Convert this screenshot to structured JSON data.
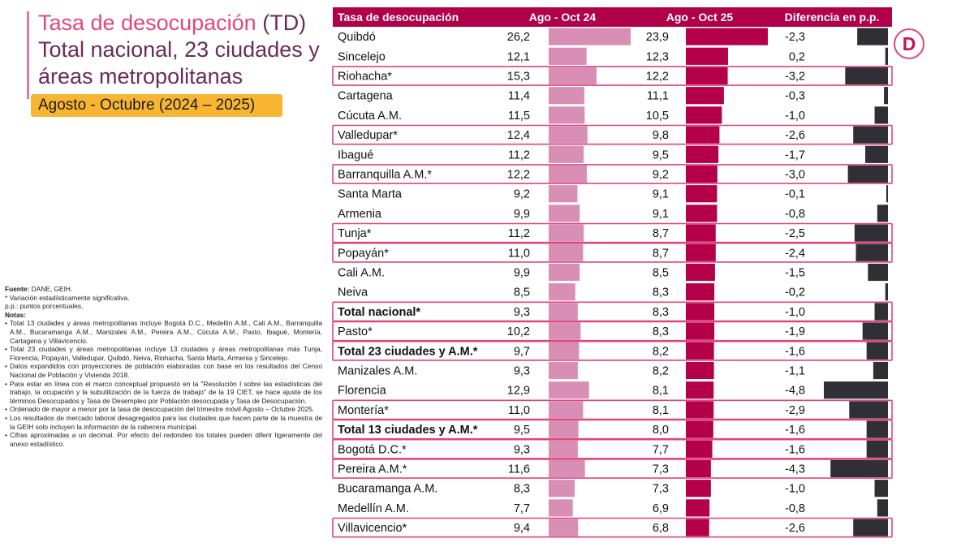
{
  "header": {
    "title_line1_pink": "Tasa de desocupación",
    "title_line1_rest": " (TD)",
    "title_line2": "Total nacional, 23 ciudades y",
    "title_line3": "áreas metropolitanas",
    "period": "Agosto - Octubre (2024 – 2025)"
  },
  "logo": {
    "letter": "D"
  },
  "colors": {
    "header_bg": "#b0004a",
    "bar_2024": "#d98fb5",
    "bar_2025": "#b30048",
    "bar_diff": "#2f2f35",
    "highlight_border": "#e0457c",
    "title_color": "#6b2b57",
    "title_pink": "#e3457e",
    "period_bg": "#f7b531"
  },
  "notes": {
    "fuente_label": "Fuente:",
    "fuente_value": " DANE, GEIH.",
    "significance": "* Variación estadísticamente significativa.",
    "pp": "p.p.: puntos porcentuales.",
    "notas_label": "Notas",
    "notas_colon": ":",
    "items": [
      "Total 13 ciudades y áreas metropolitanas incluye Bogotá D.C., Medellín A.M., Cali A.M., Barranquilla A.M., Bucaramanga A.M., Manizales A.M., Pereira A.M., Cúcuta A.M., Pasto, Ibagué, Montería, Cartagena y Villavicencio.",
      "Total 23 ciudades y áreas metropolitanas incluye 13 ciudades y áreas metropolitanas más Tunja, Florencia, Popayán, Valledupar, Quibdó, Neiva, Riohacha, Santa Marta, Armenia y Sincelejo.",
      "Datos expandidos con proyecciones de población elaboradas con base en los resultados del Censo Nacional de Población y Vivienda 2018.",
      "Para estar en línea con el marco conceptual propuesto en la \"Resolución I sobre las estadísticas del trabajo, la ocupación y la subutilización de la fuerza de trabajo\" de la 19 CIET, se hace ajuste de los términos Desocupados y Tasa de Desempleo por Población desocupada y Tasa de Desocupación.",
      "Ordenado de mayor a menor por la tasa de desocupación del trimestre móvil Agosto – Octubre 2025.",
      "Los resultados de mercado laboral desagregados para las ciudades que hacen parte de la muestra de la GEIH solo incluyen la información de la cabecera municipal.",
      "Cifras aproximadas a un decimal. Por efecto del redondeo los totales pueden diferir ligeramente del anexo estadístico."
    ]
  },
  "chart_data": {
    "type": "table",
    "title": "Tasa de desocupación (TD) Total nacional, 23 ciudades y áreas metropolitanas",
    "columns": [
      "Tasa de desocupación",
      "Ago - Oct 24",
      "Ago - Oct 25",
      "Diferencia en p.p."
    ],
    "rows": [
      {
        "name": "Quibdó",
        "v24": "26,2",
        "v25": "23,9",
        "diff": "-2,3",
        "bold": false,
        "highlight": false
      },
      {
        "name": "Sincelejo",
        "v24": "12,1",
        "v25": "12,3",
        "diff": "0,2",
        "bold": false,
        "highlight": false
      },
      {
        "name": "Riohacha*",
        "v24": "15,3",
        "v25": "12,2",
        "diff": "-3,2",
        "bold": false,
        "highlight": true
      },
      {
        "name": "Cartagena",
        "v24": "11,4",
        "v25": "11,1",
        "diff": "-0,3",
        "bold": false,
        "highlight": false
      },
      {
        "name": "Cúcuta A.M.",
        "v24": "11,5",
        "v25": "10,5",
        "diff": "-1,0",
        "bold": false,
        "highlight": false
      },
      {
        "name": "Valledupar*",
        "v24": "12,4",
        "v25": "9,8",
        "diff": "-2,6",
        "bold": false,
        "highlight": true
      },
      {
        "name": "Ibagué",
        "v24": "11,2",
        "v25": "9,5",
        "diff": "-1,7",
        "bold": false,
        "highlight": false
      },
      {
        "name": "Barranquilla A.M.*",
        "v24": "12,2",
        "v25": "9,2",
        "diff": "-3,0",
        "bold": false,
        "highlight": true
      },
      {
        "name": "Santa Marta",
        "v24": "9,2",
        "v25": "9,1",
        "diff": "-0,1",
        "bold": false,
        "highlight": false
      },
      {
        "name": "Armenia",
        "v24": "9,9",
        "v25": "9,1",
        "diff": "-0,8",
        "bold": false,
        "highlight": false
      },
      {
        "name": "Tunja*",
        "v24": "11,2",
        "v25": "8,7",
        "diff": "-2,5",
        "bold": false,
        "highlight": true
      },
      {
        "name": "Popayán*",
        "v24": "11,0",
        "v25": "8,7",
        "diff": "-2,4",
        "bold": false,
        "highlight": true
      },
      {
        "name": "Cali A.M.",
        "v24": "9,9",
        "v25": "8,5",
        "diff": "-1,5",
        "bold": false,
        "highlight": false
      },
      {
        "name": "Neiva",
        "v24": "8,5",
        "v25": "8,3",
        "diff": "-0,2",
        "bold": false,
        "highlight": false
      },
      {
        "name": "Total nacional*",
        "v24": "9,3",
        "v25": "8,3",
        "diff": "-1,0",
        "bold": true,
        "highlight": true
      },
      {
        "name": "Pasto*",
        "v24": "10,2",
        "v25": "8,3",
        "diff": "-1,9",
        "bold": false,
        "highlight": true
      },
      {
        "name": "Total 23 ciudades y A.M.*",
        "v24": "9,7",
        "v25": "8,2",
        "diff": "-1,6",
        "bold": true,
        "highlight": true
      },
      {
        "name": "Manizales A.M.",
        "v24": "9,3",
        "v25": "8,2",
        "diff": "-1,1",
        "bold": false,
        "highlight": false
      },
      {
        "name": "Florencia",
        "v24": "12,9",
        "v25": "8,1",
        "diff": "-4,8",
        "bold": false,
        "highlight": false
      },
      {
        "name": "Montería*",
        "v24": "11,0",
        "v25": "8,1",
        "diff": "-2,9",
        "bold": false,
        "highlight": true
      },
      {
        "name": "Total 13 ciudades y A.M.*",
        "v24": "9,5",
        "v25": "8,0",
        "diff": "-1,6",
        "bold": true,
        "highlight": true
      },
      {
        "name": "Bogotá D.C.*",
        "v24": "9,3",
        "v25": "7,7",
        "diff": "-1,6",
        "bold": false,
        "highlight": true
      },
      {
        "name": "Pereira A.M.*",
        "v24": "11,6",
        "v25": "7,3",
        "diff": "-4,3",
        "bold": false,
        "highlight": true
      },
      {
        "name": "Bucaramanga A.M.",
        "v24": "8,3",
        "v25": "7,3",
        "diff": "-1,0",
        "bold": false,
        "highlight": false
      },
      {
        "name": "Medellín A.M.",
        "v24": "7,7",
        "v25": "6,9",
        "diff": "-0,8",
        "bold": false,
        "highlight": false
      },
      {
        "name": "Villavicencio*",
        "v24": "9,4",
        "v25": "6,8",
        "diff": "-2,6",
        "bold": false,
        "highlight": true
      }
    ],
    "units": "%",
    "diff_units": "p.p."
  }
}
